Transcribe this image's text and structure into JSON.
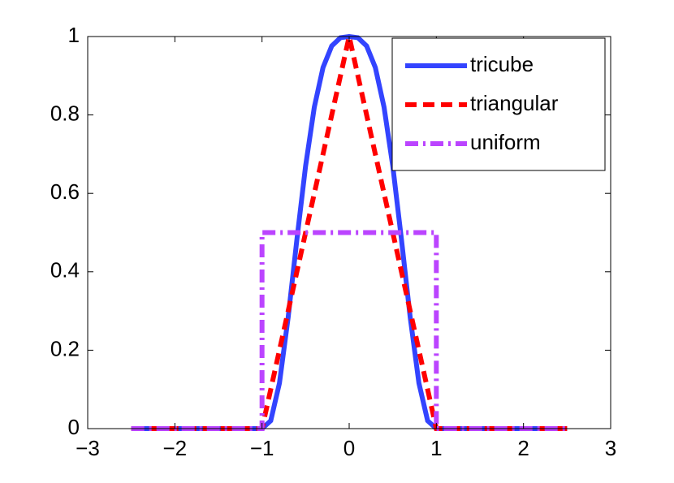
{
  "chart_data": {
    "type": "line",
    "xlim": [
      -3,
      3
    ],
    "xticks": [
      {
        "value": -3,
        "label": "−3"
      },
      {
        "value": -2,
        "label": "−2"
      },
      {
        "value": -1,
        "label": "−1"
      },
      0,
      1,
      2,
      3
    ],
    "ylim": [
      0,
      1
    ],
    "yticks": [
      0,
      0.2,
      0.4,
      0.6,
      0.8,
      1
    ],
    "grid": false,
    "legend": "northeast",
    "series": [
      {
        "name": "tricube",
        "color": "#3344ff",
        "style": "solid",
        "x": [
          -2.5,
          -1,
          -0.9,
          -0.8,
          -0.7,
          -0.6,
          -0.5,
          -0.4,
          -0.3,
          -0.2,
          -0.1,
          0,
          0.1,
          0.2,
          0.3,
          0.4,
          0.5,
          0.6,
          0.7,
          0.8,
          0.9,
          1,
          2.5
        ],
        "values": [
          0,
          0,
          0.02,
          0.116,
          0.284,
          0.482,
          0.67,
          0.82,
          0.921,
          0.976,
          0.997,
          1,
          0.997,
          0.976,
          0.921,
          0.82,
          0.67,
          0.482,
          0.284,
          0.116,
          0.02,
          0,
          0
        ]
      },
      {
        "name": "triangular",
        "color": "#ff0000",
        "style": "dashed",
        "x": [
          -2.5,
          -1,
          0,
          1,
          2.5
        ],
        "values": [
          0,
          0,
          1,
          0,
          0
        ]
      },
      {
        "name": "uniform",
        "color": "#bb44ff",
        "style": "dashdot",
        "x": [
          -2.5,
          -1,
          -1,
          1,
          1,
          2.5
        ],
        "values": [
          0,
          0,
          0.5,
          0.5,
          0,
          0
        ]
      }
    ]
  }
}
